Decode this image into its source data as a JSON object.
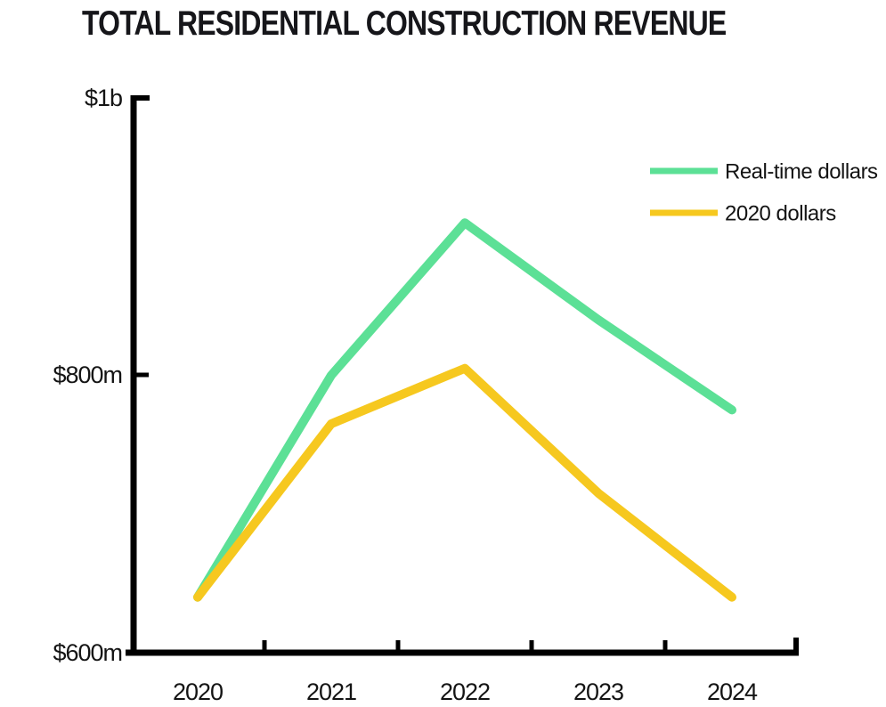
{
  "title": "TOTAL RESIDENTIAL CONSTRUCTION REVENUE",
  "colors": {
    "series_real_time": "#5CE096",
    "series_2020_dollars": "#F6C81F",
    "axis": "#000000",
    "text": "#141414"
  },
  "chart_data": {
    "type": "line",
    "title": "TOTAL RESIDENTIAL CONSTRUCTION REVENUE",
    "xlabel": "",
    "ylabel": "",
    "units": "USD",
    "categories": [
      "2020",
      "2021",
      "2022",
      "2023",
      "2024"
    ],
    "series": [
      {
        "name": "Real-time dollars",
        "color": "#5CE096",
        "values": [
          640,
          800,
          910,
          840,
          775
        ]
      },
      {
        "name": "2020 dollars",
        "color": "#F6C81F",
        "values": [
          640,
          765,
          805,
          715,
          640
        ]
      }
    ],
    "values_unit": "millions",
    "ylim": [
      600,
      1000
    ],
    "yticks": [
      {
        "label": "$1b",
        "value": 1000
      },
      {
        "label": "$800m",
        "value": 800
      },
      {
        "label": "$600m",
        "value": 600
      }
    ],
    "grid": false,
    "legend_position": "top-right"
  }
}
